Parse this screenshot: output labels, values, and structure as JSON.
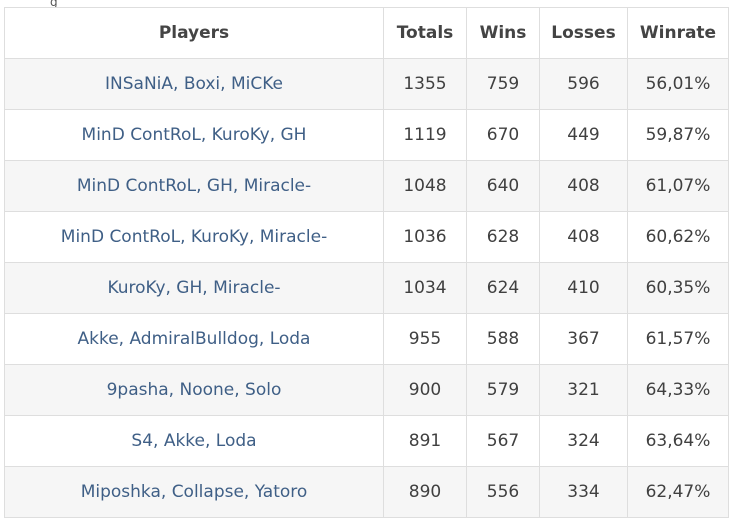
{
  "table": {
    "headers": {
      "players": "Players",
      "totals": "Totals",
      "wins": "Wins",
      "losses": "Losses",
      "winrate": "Winrate"
    },
    "rows": [
      {
        "players": "INSaNiA, Boxi, MiCKe",
        "totals": "1355",
        "wins": "759",
        "losses": "596",
        "winrate": "56,01%"
      },
      {
        "players": "MinD ContRoL, KuroKy, GH",
        "totals": "1119",
        "wins": "670",
        "losses": "449",
        "winrate": "59,87%"
      },
      {
        "players": "MinD ContRoL, GH, Miracle-",
        "totals": "1048",
        "wins": "640",
        "losses": "408",
        "winrate": "61,07%"
      },
      {
        "players": "MinD ContRoL, KuroKy, Miracle-",
        "totals": "1036",
        "wins": "628",
        "losses": "408",
        "winrate": "60,62%"
      },
      {
        "players": "KuroKy, GH, Miracle-",
        "totals": "1034",
        "wins": "624",
        "losses": "410",
        "winrate": "60,35%"
      },
      {
        "players": "Akke, AdmiralBulldog, Loda",
        "totals": "955",
        "wins": "588",
        "losses": "367",
        "winrate": "61,57%"
      },
      {
        "players": "9pasha, Noone, Solo",
        "totals": "900",
        "wins": "579",
        "losses": "321",
        "winrate": "64,33%"
      },
      {
        "players": "S4, Akke, Loda",
        "totals": "891",
        "wins": "567",
        "losses": "324",
        "winrate": "63,64%"
      },
      {
        "players": "Miposhka, Collapse, Yatoro",
        "totals": "890",
        "wins": "556",
        "losses": "334",
        "winrate": "62,47%"
      }
    ]
  },
  "top_fragment": "g"
}
